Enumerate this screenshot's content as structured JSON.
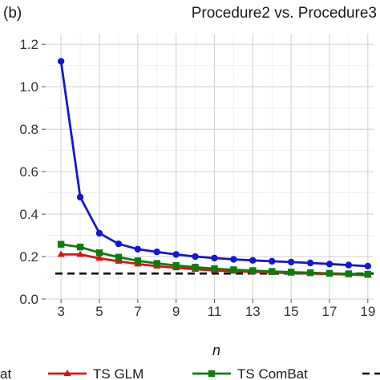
{
  "chart_data": {
    "type": "line",
    "panel_label": "(b)",
    "title": "Procedure2 vs. Procedure3",
    "xlabel": "n",
    "ylabel": "",
    "xlim": [
      2.2,
      19.3
    ],
    "ylim": [
      0,
      1.25
    ],
    "xticks": [
      3,
      5,
      7,
      9,
      11,
      13,
      15,
      17,
      19
    ],
    "yticks": [
      0.0,
      0.2,
      0.4,
      0.6,
      0.8,
      1.0,
      1.2
    ],
    "grid": true,
    "legend_position": "bottom",
    "x": [
      3,
      4,
      5,
      6,
      7,
      8,
      9,
      10,
      11,
      12,
      13,
      14,
      15,
      16,
      17,
      18,
      19
    ],
    "series": [
      {
        "name": "",
        "legend_text": "at",
        "color": "#1515d6",
        "marker": "circle",
        "values": [
          1.12,
          0.48,
          0.31,
          0.26,
          0.235,
          0.222,
          0.21,
          0.2,
          0.193,
          0.187,
          0.182,
          0.178,
          0.174,
          0.17,
          0.165,
          0.16,
          0.155
        ]
      },
      {
        "name": "TS GLM",
        "legend_text": "TS GLM",
        "color": "#e01010",
        "marker": "triangle",
        "values": [
          0.21,
          0.21,
          0.192,
          0.178,
          0.165,
          0.155,
          0.147,
          0.14,
          0.135,
          0.131,
          0.128,
          0.125,
          0.122,
          0.12,
          0.118,
          0.115,
          0.112
        ]
      },
      {
        "name": "TS ComBat",
        "legend_text": "TS ComBat",
        "color": "#0d7d0d",
        "marker": "square",
        "values": [
          0.258,
          0.245,
          0.218,
          0.197,
          0.18,
          0.168,
          0.158,
          0.15,
          0.143,
          0.138,
          0.134,
          0.13,
          0.127,
          0.124,
          0.121,
          0.119,
          0.117
        ]
      }
    ],
    "reference_line": {
      "y": 0.12,
      "color": "#000000",
      "style": "dashed"
    }
  }
}
